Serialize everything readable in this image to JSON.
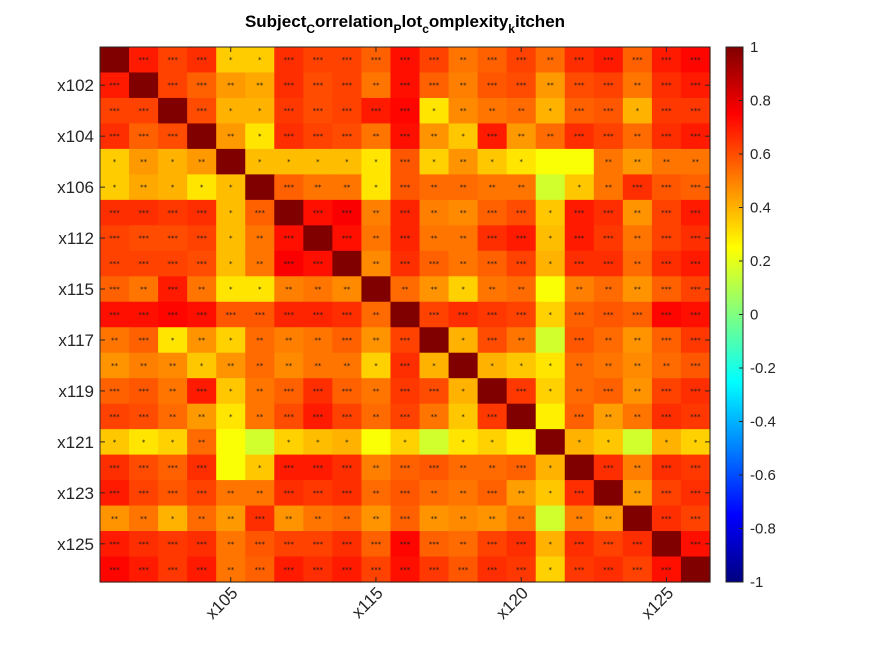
{
  "chart_data": {
    "type": "heatmap",
    "title": {
      "segments": [
        {
          "text": "Subject",
          "style": "normal"
        },
        {
          "text": "C",
          "style": "sub"
        },
        {
          "text": "orrelation",
          "style": "normal"
        },
        {
          "text": "P",
          "style": "sub"
        },
        {
          "text": "lot",
          "style": "normal"
        },
        {
          "text": "c",
          "style": "sub"
        },
        {
          "text": "omplexity",
          "style": "normal"
        },
        {
          "text": "k",
          "style": "sub"
        },
        {
          "text": "itchen",
          "style": "normal"
        }
      ]
    },
    "grid_size": 21,
    "yticks": [
      {
        "index": 1,
        "label": "x102"
      },
      {
        "index": 3,
        "label": "x104"
      },
      {
        "index": 5,
        "label": "x106"
      },
      {
        "index": 7,
        "label": "x112"
      },
      {
        "index": 9,
        "label": "x115"
      },
      {
        "index": 11,
        "label": "x117"
      },
      {
        "index": 13,
        "label": "x119"
      },
      {
        "index": 15,
        "label": "x121"
      },
      {
        "index": 17,
        "label": "x123"
      },
      {
        "index": 19,
        "label": "x125"
      }
    ],
    "xticks": [
      {
        "index": 4,
        "label": "x105"
      },
      {
        "index": 9,
        "label": "x115"
      },
      {
        "index": 14,
        "label": "x120"
      },
      {
        "index": 19,
        "label": "x125"
      }
    ],
    "colorbar": {
      "colormap": "jet",
      "clim": [
        -1,
        1
      ],
      "ticks": [
        1,
        0.8,
        0.6,
        0.4,
        0.2,
        0,
        -0.2,
        -0.4,
        -0.6,
        -0.8,
        -1
      ],
      "tick_labels": [
        "1",
        "0.8",
        "0.6",
        "0.4",
        "0.2",
        "0",
        "-0.2",
        "-0.4",
        "-0.6",
        "-0.8",
        "-1"
      ]
    },
    "values": [
      [
        1.0,
        0.7,
        0.62,
        0.66,
        0.35,
        0.35,
        0.66,
        0.62,
        0.62,
        0.56,
        0.72,
        0.62,
        0.52,
        0.56,
        0.62,
        0.54,
        0.66,
        0.7,
        0.56,
        0.7,
        0.74
      ],
      [
        0.7,
        1.0,
        0.62,
        0.56,
        0.45,
        0.42,
        0.66,
        0.6,
        0.62,
        0.52,
        0.72,
        0.56,
        0.5,
        0.58,
        0.6,
        0.45,
        0.6,
        0.62,
        0.52,
        0.66,
        0.7
      ],
      [
        0.62,
        0.62,
        1.0,
        0.6,
        0.4,
        0.4,
        0.64,
        0.6,
        0.62,
        0.7,
        0.74,
        0.3,
        0.48,
        0.52,
        0.54,
        0.4,
        0.56,
        0.58,
        0.4,
        0.64,
        0.64
      ],
      [
        0.66,
        0.56,
        0.6,
        1.0,
        0.45,
        0.3,
        0.66,
        0.62,
        0.6,
        0.52,
        0.72,
        0.46,
        0.36,
        0.7,
        0.45,
        0.54,
        0.66,
        0.62,
        0.54,
        0.66,
        0.7
      ],
      [
        0.35,
        0.45,
        0.4,
        0.45,
        1.0,
        0.38,
        0.38,
        0.38,
        0.38,
        0.3,
        0.58,
        0.34,
        0.46,
        0.36,
        0.3,
        0.24,
        0.24,
        0.52,
        0.45,
        0.52,
        0.52
      ],
      [
        0.35,
        0.42,
        0.4,
        0.3,
        0.38,
        1.0,
        0.56,
        0.52,
        0.52,
        0.3,
        0.58,
        0.54,
        0.54,
        0.52,
        0.52,
        0.16,
        0.36,
        0.52,
        0.66,
        0.58,
        0.56
      ],
      [
        0.66,
        0.66,
        0.64,
        0.66,
        0.38,
        0.56,
        1.0,
        0.72,
        0.76,
        0.5,
        0.68,
        0.5,
        0.48,
        0.56,
        0.6,
        0.36,
        0.7,
        0.66,
        0.46,
        0.62,
        0.7
      ],
      [
        0.62,
        0.6,
        0.6,
        0.62,
        0.38,
        0.52,
        0.72,
        1.0,
        0.72,
        0.52,
        0.68,
        0.52,
        0.52,
        0.66,
        0.7,
        0.38,
        0.7,
        0.64,
        0.52,
        0.62,
        0.66
      ],
      [
        0.62,
        0.62,
        0.62,
        0.6,
        0.38,
        0.52,
        0.76,
        0.72,
        1.0,
        0.48,
        0.66,
        0.56,
        0.52,
        0.56,
        0.62,
        0.4,
        0.66,
        0.66,
        0.54,
        0.66,
        0.7
      ],
      [
        0.56,
        0.52,
        0.7,
        0.52,
        0.3,
        0.3,
        0.5,
        0.52,
        0.48,
        1.0,
        0.54,
        0.46,
        0.34,
        0.52,
        0.54,
        0.24,
        0.5,
        0.54,
        0.46,
        0.56,
        0.62
      ],
      [
        0.72,
        0.72,
        0.74,
        0.72,
        0.58,
        0.58,
        0.68,
        0.68,
        0.66,
        0.54,
        1.0,
        0.62,
        0.66,
        0.64,
        0.62,
        0.34,
        0.56,
        0.58,
        0.56,
        0.74,
        0.72
      ],
      [
        0.52,
        0.56,
        0.3,
        0.46,
        0.34,
        0.54,
        0.5,
        0.52,
        0.56,
        0.46,
        0.62,
        1.0,
        0.4,
        0.6,
        0.52,
        0.16,
        0.58,
        0.54,
        0.46,
        0.56,
        0.64
      ],
      [
        0.46,
        0.5,
        0.48,
        0.36,
        0.46,
        0.54,
        0.48,
        0.52,
        0.52,
        0.34,
        0.66,
        0.4,
        1.0,
        0.4,
        0.36,
        0.3,
        0.54,
        0.52,
        0.48,
        0.54,
        0.58
      ],
      [
        0.56,
        0.58,
        0.52,
        0.7,
        0.36,
        0.52,
        0.56,
        0.66,
        0.56,
        0.52,
        0.64,
        0.6,
        0.4,
        1.0,
        0.64,
        0.34,
        0.54,
        0.56,
        0.46,
        0.62,
        0.66
      ],
      [
        0.62,
        0.6,
        0.54,
        0.45,
        0.3,
        0.52,
        0.6,
        0.7,
        0.62,
        0.54,
        0.62,
        0.52,
        0.36,
        0.64,
        1.0,
        0.28,
        0.56,
        0.44,
        0.52,
        0.66,
        0.64
      ],
      [
        0.36,
        0.3,
        0.34,
        0.54,
        0.24,
        0.16,
        0.34,
        0.38,
        0.4,
        0.24,
        0.34,
        0.16,
        0.3,
        0.34,
        0.28,
        1.0,
        0.4,
        0.36,
        0.16,
        0.4,
        0.34
      ],
      [
        0.66,
        0.6,
        0.56,
        0.66,
        0.24,
        0.36,
        0.7,
        0.7,
        0.66,
        0.5,
        0.56,
        0.58,
        0.54,
        0.54,
        0.56,
        0.4,
        1.0,
        0.66,
        0.5,
        0.66,
        0.64
      ],
      [
        0.7,
        0.62,
        0.58,
        0.62,
        0.52,
        0.52,
        0.66,
        0.64,
        0.66,
        0.54,
        0.58,
        0.54,
        0.52,
        0.56,
        0.44,
        0.36,
        0.66,
        1.0,
        0.44,
        0.62,
        0.66
      ],
      [
        0.46,
        0.52,
        0.4,
        0.54,
        0.45,
        0.66,
        0.46,
        0.52,
        0.54,
        0.46,
        0.56,
        0.46,
        0.48,
        0.46,
        0.52,
        0.16,
        0.5,
        0.44,
        1.0,
        0.66,
        0.62
      ],
      [
        0.7,
        0.66,
        0.64,
        0.66,
        0.52,
        0.58,
        0.62,
        0.62,
        0.66,
        0.56,
        0.74,
        0.56,
        0.54,
        0.62,
        0.66,
        0.4,
        0.66,
        0.62,
        0.66,
        1.0,
        0.72
      ],
      [
        0.74,
        0.7,
        0.64,
        0.7,
        0.52,
        0.56,
        0.7,
        0.66,
        0.7,
        0.62,
        0.72,
        0.64,
        0.58,
        0.66,
        0.64,
        0.34,
        0.64,
        0.66,
        0.62,
        0.72,
        1.0
      ]
    ]
  }
}
